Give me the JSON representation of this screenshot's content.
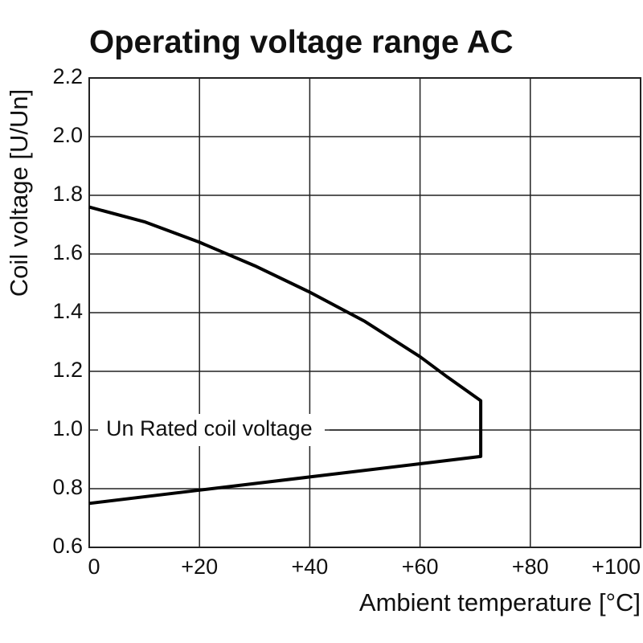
{
  "chart_data": {
    "type": "line",
    "title": "Operating voltage range AC",
    "x_label": "Ambient temperature [°C]",
    "y_label": "Coil voltage [U/Un]",
    "annotation": "Un Rated coil voltage",
    "x": [
      0,
      10,
      20,
      30,
      40,
      50,
      60,
      65,
      71,
      71,
      60,
      40,
      20,
      0
    ],
    "series": [
      {
        "color": "#000000",
        "values": [
          1.76,
          1.71,
          1.64,
          1.56,
          1.47,
          1.37,
          1.25,
          1.18,
          1.1,
          0.91,
          0.885,
          0.84,
          0.795,
          0.75
        ]
      }
    ],
    "xlim": [
      0,
      100
    ],
    "xticks": [
      0,
      {
        "value": 20,
        "label": "+20"
      },
      {
        "value": 40,
        "label": "+40"
      },
      {
        "value": 60,
        "label": "+60"
      },
      {
        "value": 80,
        "label": "+80"
      },
      {
        "value": 100,
        "label": "+100"
      }
    ],
    "ylim": [
      0.6,
      2.2
    ],
    "yticks": [
      0.6,
      0.8,
      {
        "value": 1,
        "label": "1.0"
      },
      1.2,
      1.4,
      1.6,
      1.8,
      {
        "value": 2,
        "label": "2.0"
      },
      2.2
    ],
    "grid": true
  }
}
